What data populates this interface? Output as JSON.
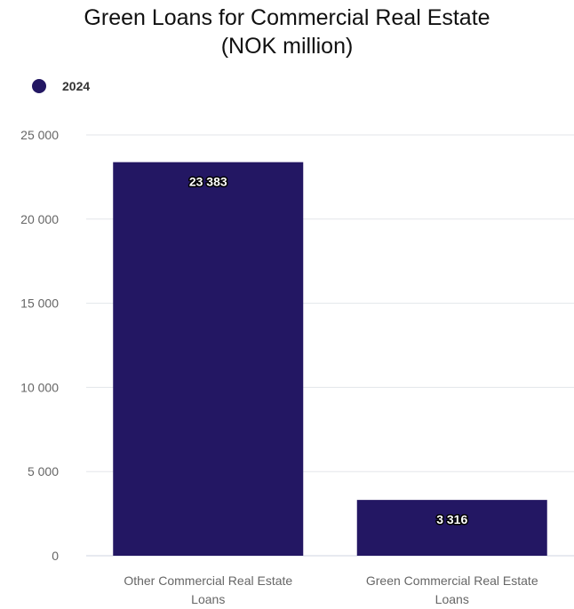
{
  "chart_data": {
    "type": "bar",
    "title": "Green Loans for Commercial Real Estate",
    "subtitle": "(NOK million)",
    "categories": [
      "Other Commercial Real Estate Loans",
      "Green Commercial Real Estate Loans"
    ],
    "category_lines": [
      [
        "Other Commercial Real Estate",
        "Loans"
      ],
      [
        "Green Commercial Real Estate",
        "Loans"
      ]
    ],
    "series": [
      {
        "name": "2024",
        "values": [
          23383,
          3316
        ],
        "labels": [
          "23 383",
          "3 316"
        ]
      }
    ],
    "ylim": [
      0,
      25000
    ],
    "yticks": [
      0,
      5000,
      10000,
      15000,
      20000,
      25000
    ],
    "ytick_labels": [
      "0",
      "5 000",
      "10 000",
      "15 000",
      "20 000",
      "25 000"
    ],
    "grid": true,
    "legend_position": "top-left",
    "colors": {
      "bar": "#231763",
      "grid": "#e3e6ea",
      "axis_text": "#666666"
    }
  }
}
